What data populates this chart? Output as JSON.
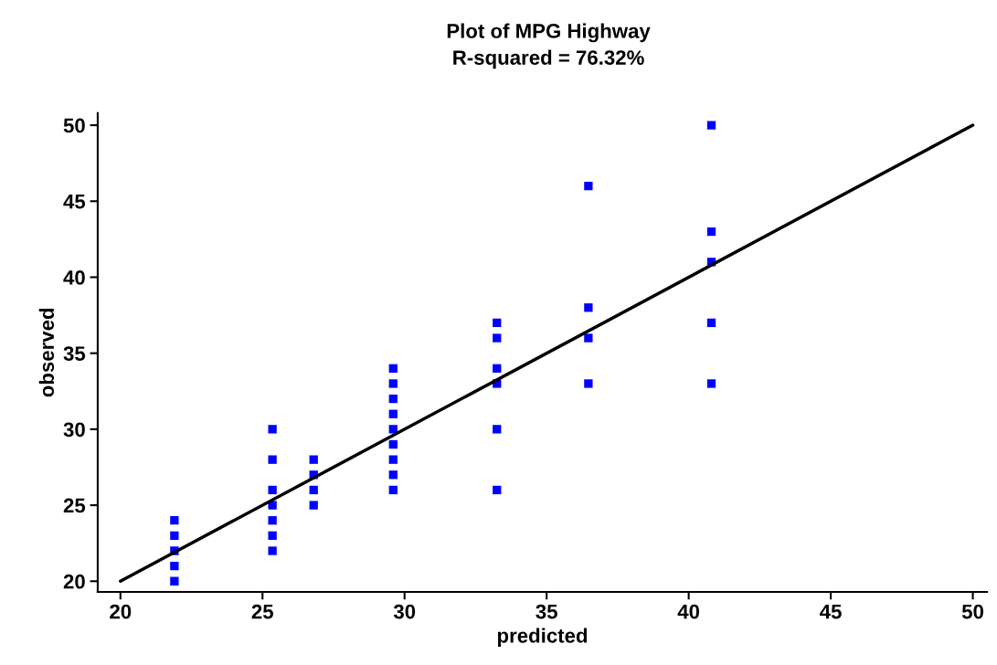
{
  "chart_data": {
    "type": "scatter",
    "title": "Plot of MPG Highway",
    "subtitle": "R-squared = 76.32%",
    "xlabel": "predicted",
    "ylabel": "observed",
    "xlim": [
      19.2,
      50.5
    ],
    "ylim": [
      19.3,
      50.8
    ],
    "xticks": [
      20,
      25,
      30,
      35,
      40,
      45,
      50
    ],
    "yticks": [
      20,
      25,
      30,
      35,
      40,
      45,
      50
    ],
    "grid": false,
    "legend": false,
    "marker": "square",
    "series": [
      {
        "color": "#0000ff",
        "x": [
          21.9,
          21.9,
          21.9,
          21.9,
          21.9,
          25.35,
          25.35,
          25.35,
          25.35,
          25.35,
          25.35,
          25.35,
          26.8,
          26.8,
          26.8,
          26.8,
          29.6,
          29.6,
          29.6,
          29.6,
          29.6,
          29.6,
          29.6,
          29.6,
          29.6,
          33.25,
          33.25,
          33.25,
          33.25,
          33.25,
          33.25,
          36.47,
          36.47,
          36.47,
          36.47,
          40.8,
          40.8,
          40.8,
          40.8,
          40.8
        ],
        "values": [
          24,
          23,
          22,
          21,
          20,
          30,
          28,
          26,
          25,
          24,
          23,
          22,
          28,
          27,
          26,
          25,
          34,
          33,
          32,
          31,
          30,
          29,
          28,
          27,
          26,
          37,
          36,
          34,
          33,
          30,
          26,
          46,
          38,
          36,
          33,
          50,
          43,
          41,
          37,
          33
        ]
      },
      {
        "type": "line",
        "color": "#000000",
        "marker": "none",
        "line_style": "solid",
        "x": [
          20,
          50
        ],
        "values": [
          20,
          50
        ]
      }
    ]
  }
}
